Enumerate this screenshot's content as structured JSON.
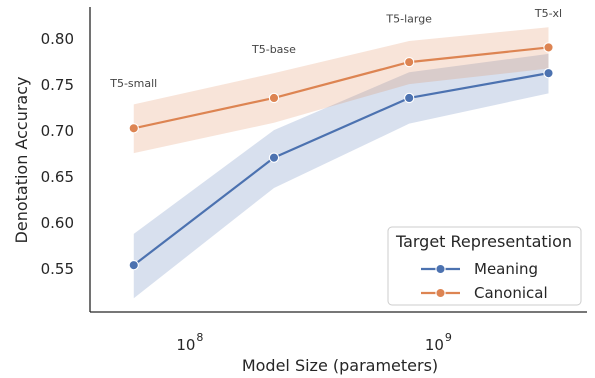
{
  "chart_data": {
    "type": "line",
    "xlabel": "Model Size (parameters)",
    "ylabel": "Denotation Accuracy",
    "x_scale": "log",
    "xlim": [
      40000000,
      4000000000
    ],
    "ylim": [
      0.503,
      0.835
    ],
    "x_ticks": [
      {
        "value": 100000000,
        "base": "10",
        "exp": "8"
      },
      {
        "value": 1000000000,
        "base": "10",
        "exp": "9"
      }
    ],
    "y_ticks": [
      0.55,
      0.6,
      0.65,
      0.7,
      0.75,
      0.8
    ],
    "y_tick_labels": [
      "0.55",
      "0.60",
      "0.65",
      "0.70",
      "0.75",
      "0.80"
    ],
    "x": [
      60000000,
      220000000,
      770000000,
      2800000000
    ],
    "point_labels": [
      {
        "text": "T5-small",
        "x": 60000000,
        "y": 0.748
      },
      {
        "text": "T5-base",
        "x": 220000000,
        "y": 0.785
      },
      {
        "text": "T5-large",
        "x": 770000000,
        "y": 0.818
      },
      {
        "text": "T5-xl",
        "x": 2800000000,
        "y": 0.824
      }
    ],
    "series": [
      {
        "name": "Meaning",
        "color": "#4c72b0",
        "values": [
          0.554,
          0.671,
          0.736,
          0.763
        ],
        "ci_lower": [
          0.518,
          0.638,
          0.708,
          0.741
        ],
        "ci_upper": [
          0.588,
          0.701,
          0.764,
          0.784
        ]
      },
      {
        "name": "Canonical",
        "color": "#dd8452",
        "values": [
          0.703,
          0.736,
          0.775,
          0.791
        ],
        "ci_lower": [
          0.676,
          0.709,
          0.751,
          0.768
        ],
        "ci_upper": [
          0.729,
          0.763,
          0.798,
          0.813
        ]
      }
    ],
    "legend": {
      "title": "Target Representation",
      "placement": "lower-right"
    },
    "grid": false
  }
}
